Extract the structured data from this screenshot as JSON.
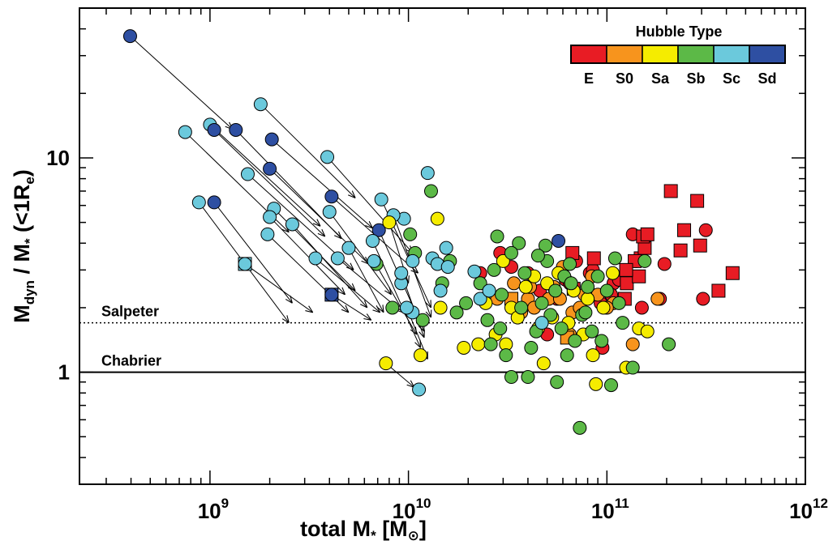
{
  "chart_data": {
    "type": "scatter",
    "xlabel": "total M* [M⊙]",
    "ylabel": "Mdyn / M* (<1Re)",
    "xscale": "log",
    "yscale": "log",
    "xlim": [
      220000000.0,
      1000000000000.0
    ],
    "ylim": [
      0.3,
      50
    ],
    "x_ticks": [
      {
        "value": 1000000000.0,
        "label": "10",
        "exp": "9"
      },
      {
        "value": 10000000000.0,
        "label": "10",
        "exp": "10"
      },
      {
        "value": 100000000000.0,
        "label": "10",
        "exp": "11"
      },
      {
        "value": 1000000000000.0,
        "label": "10",
        "exp": "12"
      }
    ],
    "y_ticks": [
      {
        "value": 1,
        "label": "1"
      },
      {
        "value": 10,
        "label": "10"
      }
    ],
    "reference_lines": [
      {
        "name": "Salpeter",
        "y": 1.7,
        "style": "dotted"
      },
      {
        "name": "Chabrier",
        "y": 1.0,
        "style": "solid"
      }
    ],
    "legend": {
      "title": "Hubble Type",
      "placement": "top-right",
      "entries": [
        {
          "label": "E",
          "color": "#e81c24"
        },
        {
          "label": "S0",
          "color": "#f7941d"
        },
        {
          "label": "Sa",
          "color": "#f5ec00"
        },
        {
          "label": "Sb",
          "color": "#5cb947"
        },
        {
          "label": "Sc",
          "color": "#6bc9dc"
        },
        {
          "label": "Sd",
          "color": "#2e4fa2"
        }
      ]
    },
    "arrows": [
      {
        "from": [
          396000000.0,
          37
        ],
        "to": [
          1300000000.0,
          13.6
        ],
        "type": "Sd"
      },
      {
        "from": [
          750000000.0,
          13.2
        ],
        "to": [
          2500000000.0,
          4.5
        ],
        "type": "Sc"
      },
      {
        "from": [
          1000000000.0,
          14.3
        ],
        "to": [
          3600000000.0,
          4.8
        ],
        "type": "Sc"
      },
      {
        "from": [
          1050000000.0,
          13.5
        ],
        "to": [
          3800000000.0,
          4.3
        ],
        "type": "Sd"
      },
      {
        "from": [
          1350000000.0,
          13.5
        ],
        "to": [
          4600000000.0,
          4.2
        ],
        "type": "Sd"
      },
      {
        "from": [
          1800000000.0,
          17.8
        ],
        "to": [
          5400000000.0,
          6.5
        ],
        "type": "Sc"
      },
      {
        "from": [
          2050000000.0,
          12.2
        ],
        "to": [
          6600000000.0,
          4.7
        ],
        "type": "Sd"
      },
      {
        "from": [
          2000000000.0,
          8.9
        ],
        "to": [
          6300000000.0,
          3.2
        ],
        "type": "Sd"
      },
      {
        "from": [
          1550000000.0,
          8.4
        ],
        "to": [
          5300000000.0,
          3.0
        ],
        "type": "Sc"
      },
      {
        "from": [
          3900000000.0,
          10.1
        ],
        "to": [
          10500000000.0,
          3.6
        ],
        "type": "Sc"
      },
      {
        "from": [
          4100000000.0,
          6.6
        ],
        "to": [
          11200000000.0,
          2.9
        ],
        "type": "Sd"
      },
      {
        "from": [
          880000000.0,
          6.2
        ],
        "to": [
          2500000000.0,
          1.7
        ],
        "type": "Sc"
      },
      {
        "from": [
          1050000000.0,
          6.2
        ],
        "to": [
          2600000000.0,
          2.1
        ],
        "type": "Sd"
      },
      {
        "from": [
          1500000000.0,
          3.2
        ],
        "to": [
          3300000000.0,
          1.9
        ],
        "type": "Sc"
      },
      {
        "from": [
          2100000000.0,
          5.8
        ],
        "to": [
          5400000000.0,
          2.4
        ],
        "type": "Sc"
      },
      {
        "from": [
          2000000000.0,
          5.3
        ],
        "to": [
          4800000000.0,
          2.3
        ],
        "type": "Sc"
      },
      {
        "from": [
          1950000000.0,
          4.4
        ],
        "to": [
          5000000000.0,
          1.9
        ],
        "type": "Sc"
      },
      {
        "from": [
          2600000000.0,
          4.9
        ],
        "to": [
          6200000000.0,
          2.0
        ],
        "type": "Sc"
      },
      {
        "from": [
          3400000000.0,
          3.4
        ],
        "to": [
          7200000000.0,
          1.9
        ],
        "type": "Sc"
      },
      {
        "from": [
          4100000000.0,
          2.3
        ],
        "to": [
          6500000000.0,
          1.75
        ],
        "type": "Sd"
      },
      {
        "from": [
          4400000000.0,
          3.4
        ],
        "to": [
          9400000000.0,
          1.9
        ],
        "type": "Sc"
      },
      {
        "from": [
          4000000000.0,
          5.6
        ],
        "to": [
          8200000000.0,
          2.3
        ],
        "type": "Sc"
      },
      {
        "from": [
          7300000000.0,
          6.4
        ],
        "to": [
          13000000000.0,
          2.0
        ],
        "type": "Sc"
      },
      {
        "from": [
          7100000000.0,
          4.6
        ],
        "to": [
          12000000000.0,
          1.55
        ],
        "type": "Sd"
      },
      {
        "from": [
          6600000000.0,
          4.1
        ],
        "to": [
          11500000000.0,
          1.3
        ],
        "type": "Sc"
      },
      {
        "from": [
          6700000000.0,
          3.3
        ],
        "to": [
          11000000000.0,
          1.5
        ],
        "type": "Sc"
      },
      {
        "from": [
          8400000000.0,
          5.4
        ],
        "to": [
          13000000000.0,
          1.8
        ],
        "type": "Sc"
      },
      {
        "from": [
          9200000000.0,
          2.9
        ],
        "to": [
          12000000000.0,
          1.45
        ],
        "type": "Sc"
      },
      {
        "from": [
          7700000000.0,
          1.1
        ],
        "to": [
          10700000000.0,
          0.85
        ],
        "type": "Sa"
      },
      {
        "from": [
          8000000000.0,
          5.0
        ],
        "to": [
          10000000000.0,
          2.6
        ],
        "type": "Sa"
      },
      {
        "from": [
          5000000000.0,
          3.8
        ],
        "to": [
          7500000000.0,
          1.9
        ],
        "type": "Sc"
      },
      {
        "from": [
          9800000000.0,
          2.0
        ],
        "to": [
          12500000000.0,
          1.15
        ],
        "type": "Sc"
      }
    ],
    "series": [
      {
        "name": "E",
        "color": "#e81c24",
        "marker": "circle",
        "points": [
          [
            23000000000.0,
            2.9
          ],
          [
            29000000000.0,
            3.6
          ],
          [
            33000000000.0,
            3.1
          ],
          [
            40000000000.0,
            2.9
          ],
          [
            56000000000.0,
            2.2
          ],
          [
            62000000000.0,
            2.7
          ],
          [
            70000000000.0,
            3.3
          ],
          [
            82000000000.0,
            2.9
          ],
          [
            93000000000.0,
            2.1
          ],
          [
            108000000000.0,
            2.6
          ],
          [
            115000000000.0,
            2.7
          ],
          [
            135000000000.0,
            4.4
          ],
          [
            150000000000.0,
            2.0
          ],
          [
            140000000000.0,
            3.3
          ],
          [
            130000000000.0,
            2.8
          ],
          [
            185000000000.0,
            2.2
          ],
          [
            195000000000.0,
            3.2
          ],
          [
            305000000000.0,
            2.2
          ],
          [
            315000000000.0,
            4.6
          ],
          [
            50000000000.0,
            1.5
          ],
          [
            95000000000.0,
            1.3
          ],
          [
            65000000000.0,
            2.6
          ],
          [
            46000000000.0,
            2.4
          ],
          [
            85000000000.0,
            3.0
          ],
          [
            105000000000.0,
            2.3
          ]
        ]
      },
      {
        "name": "E",
        "color": "#e81c24",
        "marker": "square",
        "points": [
          [
            67000000000.0,
            3.6
          ],
          [
            86000000000.0,
            3.4
          ],
          [
            68000000000.0,
            2.45
          ],
          [
            126000000000.0,
            2.6
          ],
          [
            145000000000.0,
            2.8
          ],
          [
            148000000000.0,
            3.4
          ],
          [
            155000000000.0,
            3.8
          ],
          [
            152000000000.0,
            4.3
          ],
          [
            138000000000.0,
            3.3
          ],
          [
            123000000000.0,
            2.2
          ],
          [
            210000000000.0,
            7.0
          ],
          [
            245000000000.0,
            4.6
          ],
          [
            235000000000.0,
            3.7
          ],
          [
            285000000000.0,
            6.3
          ],
          [
            295000000000.0,
            3.9
          ],
          [
            365000000000.0,
            2.4
          ],
          [
            430000000000.0,
            2.9
          ],
          [
            160000000000.0,
            4.4
          ],
          [
            125000000000.0,
            3.0
          ]
        ]
      },
      {
        "name": "S0",
        "color": "#f7941d",
        "marker": "circle",
        "points": [
          [
            34000000000.0,
            2.6
          ],
          [
            40000000000.0,
            2.2
          ],
          [
            43000000000.0,
            2.0
          ],
          [
            41000000000.0,
            2.5
          ],
          [
            51000000000.0,
            2.2
          ],
          [
            54000000000.0,
            2.5
          ],
          [
            58000000000.0,
            2.2
          ],
          [
            67000000000.0,
            1.9
          ],
          [
            65000000000.0,
            1.5
          ],
          [
            73000000000.0,
            2.0
          ],
          [
            77000000000.0,
            2.3
          ],
          [
            84000000000.0,
            2.8
          ],
          [
            90000000000.0,
            2.3
          ],
          [
            108000000000.0,
            2.1
          ],
          [
            135000000000.0,
            1.35
          ],
          [
            180000000000.0,
            2.2
          ],
          [
            28000000000.0,
            2.2
          ],
          [
            37000000000.0,
            1.9
          ],
          [
            60000000000.0,
            3.1
          ],
          [
            100000000000.0,
            2.0
          ]
        ]
      },
      {
        "name": "S0",
        "color": "#f7941d",
        "marker": "square",
        "points": [
          [
            33000000000.0,
            2.2
          ],
          [
            63000000000.0,
            1.45
          ]
        ]
      },
      {
        "name": "Sa",
        "color": "#f5ec00",
        "marker": "circle",
        "points": [
          [
            11500000000.0,
            1.2
          ],
          [
            14000000000.0,
            5.2
          ],
          [
            14500000000.0,
            2.0
          ],
          [
            19000000000.0,
            1.3
          ],
          [
            22500000000.0,
            1.35
          ],
          [
            24500000000.0,
            2.1
          ],
          [
            27500000000.0,
            1.5
          ],
          [
            30000000000.0,
            3.3
          ],
          [
            33000000000.0,
            2.0
          ],
          [
            35500000000.0,
            1.8
          ],
          [
            39000000000.0,
            2.5
          ],
          [
            43000000000.0,
            2.8
          ],
          [
            45000000000.0,
            1.6
          ],
          [
            48000000000.0,
            1.1
          ],
          [
            53000000000.0,
            1.8
          ],
          [
            57000000000.0,
            2.9
          ],
          [
            64000000000.0,
            1.7
          ],
          [
            68000000000.0,
            2.4
          ],
          [
            76000000000.0,
            1.5
          ],
          [
            80000000000.0,
            2.2
          ],
          [
            88000000000.0,
            0.88
          ],
          [
            96000000000.0,
            2.0
          ],
          [
            107000000000.0,
            2.9
          ],
          [
            125000000000.0,
            1.05
          ],
          [
            145000000000.0,
            1.6
          ],
          [
            160000000000.0,
            1.55
          ],
          [
            31000000000.0,
            1.35
          ],
          [
            50000000000.0,
            2.6
          ],
          [
            85000000000.0,
            1.2
          ]
        ]
      },
      {
        "name": "Sb",
        "color": "#5cb947",
        "marker": "circle",
        "points": [
          [
            6900000000.0,
            3.2
          ],
          [
            8300000000.0,
            2.0
          ],
          [
            10200000000.0,
            4.4
          ],
          [
            10800000000.0,
            3.6
          ],
          [
            11800000000.0,
            1.75
          ],
          [
            13000000000.0,
            7.0
          ],
          [
            14800000000.0,
            2.6
          ],
          [
            16200000000.0,
            3.3
          ],
          [
            17500000000.0,
            1.9
          ],
          [
            19500000000.0,
            2.1
          ],
          [
            23000000000.0,
            2.6
          ],
          [
            25000000000.0,
            1.75
          ],
          [
            26000000000.0,
            1.35
          ],
          [
            28000000000.0,
            4.3
          ],
          [
            29500000000.0,
            2.3
          ],
          [
            31000000000.0,
            1.2
          ],
          [
            33000000000.0,
            0.95
          ],
          [
            36000000000.0,
            4.0
          ],
          [
            38500000000.0,
            2.9
          ],
          [
            41500000000.0,
            1.3
          ],
          [
            44000000000.0,
            1.55
          ],
          [
            47000000000.0,
            2.1
          ],
          [
            49000000000.0,
            3.9
          ],
          [
            50000000000.0,
            3.3
          ],
          [
            52000000000.0,
            1.85
          ],
          [
            56000000000.0,
            0.9
          ],
          [
            59000000000.0,
            1.6
          ],
          [
            61000000000.0,
            2.8
          ],
          [
            63000000000.0,
            1.2
          ],
          [
            66000000000.0,
            2.6
          ],
          [
            69000000000.0,
            1.4
          ],
          [
            73000000000.0,
            0.55
          ],
          [
            75000000000.0,
            1.85
          ],
          [
            80000000000.0,
            2.5
          ],
          [
            84000000000.0,
            1.55
          ],
          [
            90000000000.0,
            2.8
          ],
          [
            94000000000.0,
            1.4
          ],
          [
            105000000000.0,
            0.87
          ],
          [
            110000000000.0,
            3.4
          ],
          [
            120000000000.0,
            1.7
          ],
          [
            135000000000.0,
            1.05
          ],
          [
            155000000000.0,
            3.3
          ],
          [
            205000000000.0,
            1.35
          ],
          [
            37000000000.0,
            2.0
          ],
          [
            45000000000.0,
            3.5
          ],
          [
            55000000000.0,
            2.4
          ],
          [
            78000000000.0,
            1.9
          ],
          [
            100000000000.0,
            2.4
          ],
          [
            27000000000.0,
            3.0
          ],
          [
            33000000000.0,
            3.6
          ],
          [
            65000000000.0,
            3.2
          ],
          [
            40000000000.0,
            0.95
          ],
          [
            29000000000.0,
            1.6
          ],
          [
            115000000000.0,
            2.1
          ]
        ]
      },
      {
        "name": "Sc",
        "color": "#6bc9dc",
        "marker": "circle",
        "points": [
          [
            9500000000.0,
            5.2
          ],
          [
            10500000000.0,
            3.3
          ],
          [
            11300000000.0,
            0.83
          ],
          [
            12500000000.0,
            8.5
          ],
          [
            13200000000.0,
            3.4
          ],
          [
            14000000000.0,
            3.2
          ],
          [
            15500000000.0,
            3.8
          ],
          [
            15800000000.0,
            3.1
          ],
          [
            21500000000.0,
            2.95
          ],
          [
            23000000000.0,
            2.2
          ],
          [
            47000000000.0,
            1.7
          ],
          [
            25500000000.0,
            2.4
          ],
          [
            9200000000.0,
            2.6
          ],
          [
            10500000000.0,
            1.9
          ],
          [
            14500000000.0,
            2.4
          ]
        ]
      },
      {
        "name": "Sc",
        "color": "#6bc9dc",
        "marker": "square",
        "points": [
          [
            1500000000.0,
            3.2
          ]
        ]
      },
      {
        "name": "Sd",
        "color": "#2e4fa2",
        "marker": "circle",
        "points": [
          [
            57000000000.0,
            4.1
          ]
        ]
      },
      {
        "name": "Sd",
        "color": "#2e4fa2",
        "marker": "square",
        "points": [
          [
            4100000000.0,
            2.3
          ]
        ]
      }
    ]
  }
}
